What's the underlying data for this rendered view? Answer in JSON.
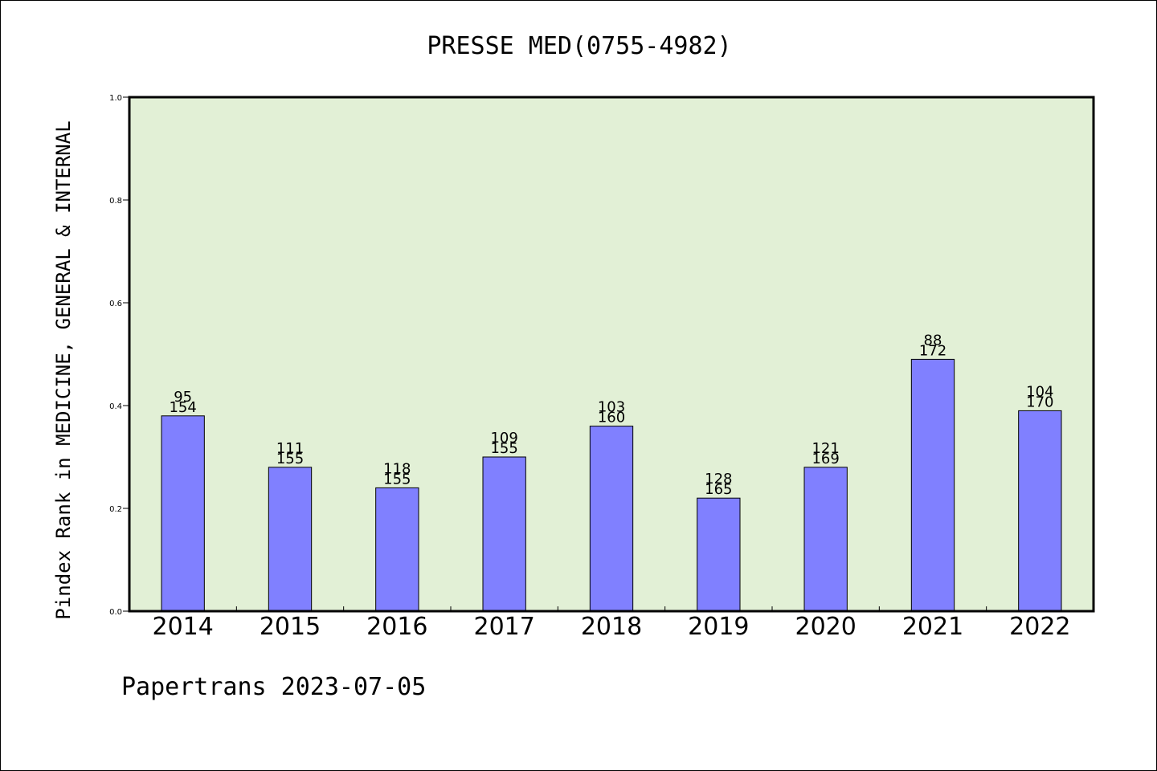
{
  "chart_data": {
    "type": "bar",
    "title": "PRESSE MED(0755-4982)",
    "ylabel": "Pindex Rank in MEDICINE, GENERAL & INTERNAL",
    "xlabel": "",
    "categories": [
      "2014",
      "2015",
      "2016",
      "2017",
      "2018",
      "2019",
      "2020",
      "2021",
      "2022"
    ],
    "values": [
      0.38,
      0.28,
      0.24,
      0.3,
      0.36,
      0.22,
      0.28,
      0.49,
      0.39
    ],
    "rank_labels": [
      "95",
      "111",
      "118",
      "109",
      "103",
      "128",
      "121",
      "88",
      "104"
    ],
    "total_labels": [
      "154",
      "155",
      "155",
      "155",
      "160",
      "165",
      "169",
      "172",
      "170"
    ],
    "ylim": [
      0.0,
      1.0
    ],
    "yticks": [
      "0.0",
      "0.2",
      "0.4",
      "0.6",
      "0.8",
      "1.0"
    ],
    "grid": false,
    "colors": {
      "plot_background": "#e2f0d6",
      "bar_fill": "#8080ff",
      "bar_edge": "#000000"
    }
  },
  "footer": "Papertrans 2023-07-05"
}
